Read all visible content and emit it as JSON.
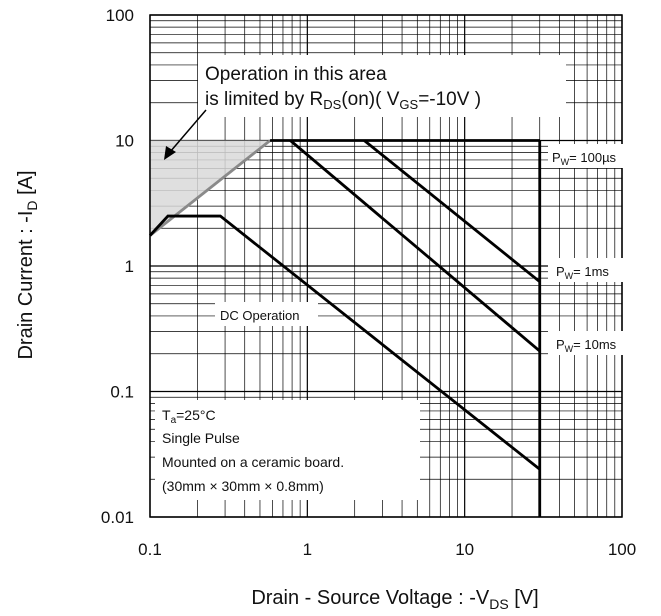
{
  "chart_data": {
    "type": "line",
    "x_label": [
      "Drain - Source Voltage : -V",
      "DS",
      " [V]"
    ],
    "y_label": [
      "Drain Current : -I",
      "D",
      " [A]"
    ],
    "log_x": true,
    "log_y": true,
    "grid": true,
    "xlim": [
      0.1,
      100
    ],
    "ylim": [
      0.01,
      100
    ],
    "xticks": [
      0.1,
      1,
      10,
      100
    ],
    "yticks": [
      0.01,
      0.1,
      1,
      10,
      100
    ],
    "series": [
      {
        "color": "#8a8a8a",
        "x": [
          0.1,
          0.58
        ],
        "values": [
          1.75,
          10
        ]
      },
      {
        "color": "#000000",
        "x": [
          0.58,
          30
        ],
        "values": [
          10,
          10
        ]
      },
      {
        "color": "#000000",
        "x": [
          30,
          30
        ],
        "values": [
          10,
          0.01
        ]
      },
      {
        "color": "#000000",
        "label": [
          "P",
          "W",
          "= 100µs"
        ],
        "x": [
          2.3,
          30
        ],
        "values": [
          10,
          0.75
        ]
      },
      {
        "color": "#000000",
        "label": [
          "P",
          "W",
          "= 1ms"
        ],
        "x": [
          0.78,
          30
        ],
        "values": [
          10,
          0.21
        ]
      },
      {
        "color": "#000000",
        "label": [
          "P",
          "W",
          "= 10ms"
        ],
        "x": [
          0.1,
          0.13,
          0.28,
          30
        ],
        "values": [
          1.75,
          2.5,
          2.5,
          0.024
        ]
      },
      {
        "color": "#000000",
        "name": "DC Operation",
        "x": [],
        "values": []
      }
    ],
    "annotation": [
      "Operation in this area",
      "is limited by R",
      "DS",
      "(on)( V",
      "GS",
      "=-10V )"
    ],
    "note": [
      "T",
      "a",
      "=25°C",
      "Single Pulse",
      "Mounted on a ceramic board.",
      "(30mm × 30mm × 0.8mm)"
    ]
  }
}
